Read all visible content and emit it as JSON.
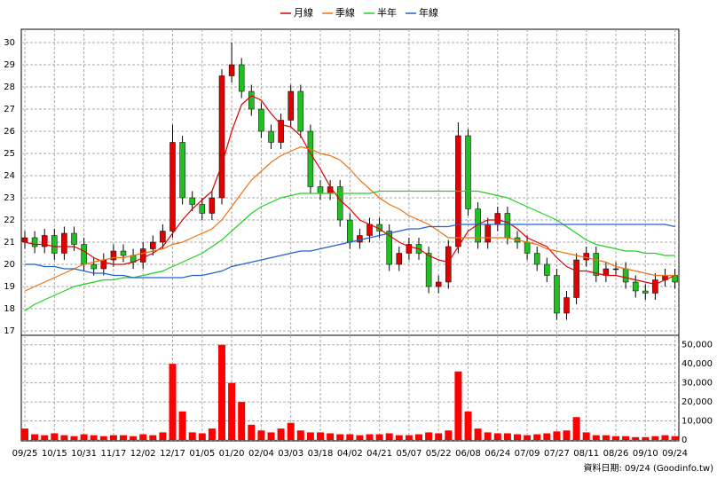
{
  "chart_data": {
    "type": "candlestick",
    "categories": [
      "09/25",
      null,
      null,
      "10/15",
      null,
      null,
      "10/31",
      null,
      null,
      "11/17",
      null,
      null,
      "12/02",
      null,
      null,
      "12/17",
      null,
      null,
      "01/05",
      null,
      null,
      "01/20",
      null,
      null,
      "02/04",
      null,
      null,
      "03/03",
      null,
      null,
      "03/18",
      null,
      null,
      "04/02",
      null,
      null,
      "04/21",
      null,
      null,
      "05/07",
      null,
      null,
      "05/22",
      null,
      null,
      "06/08",
      null,
      null,
      "06/24",
      null,
      null,
      "07/09",
      null,
      null,
      "07/27",
      null,
      null,
      "08/11",
      null,
      null,
      "08/26",
      null,
      null,
      "09/10",
      null,
      null,
      "09/24"
    ],
    "open": [
      21.0,
      21.2,
      20.8,
      21.3,
      20.5,
      21.4,
      20.9,
      20.0,
      19.8,
      20.2,
      20.6,
      20.4,
      20.1,
      20.7,
      21.0,
      21.5,
      25.5,
      23.0,
      22.7,
      22.3,
      23.0,
      28.5,
      29.0,
      27.8,
      27.0,
      26.0,
      25.5,
      26.5,
      27.8,
      26.0,
      23.5,
      23.2,
      23.5,
      22.0,
      21.0,
      21.3,
      21.8,
      21.5,
      20.0,
      20.5,
      20.9,
      20.5,
      19.0,
      19.2,
      20.8,
      25.8,
      22.5,
      21.0,
      21.8,
      22.3,
      21.2,
      21.0,
      20.5,
      20.0,
      19.5,
      17.8,
      18.5,
      20.2,
      20.5,
      19.5,
      19.8,
      19.8,
      19.2,
      18.8,
      18.7,
      19.3,
      19.5
    ],
    "high": [
      21.5,
      21.5,
      21.6,
      21.6,
      21.7,
      21.7,
      21.2,
      20.3,
      20.5,
      20.9,
      20.9,
      20.7,
      21.0,
      21.3,
      21.8,
      26.3,
      25.8,
      23.3,
      23.0,
      23.3,
      28.8,
      30.0,
      29.3,
      28.1,
      27.3,
      26.3,
      26.8,
      28.1,
      28.1,
      26.3,
      23.8,
      23.8,
      23.8,
      22.3,
      21.6,
      22.1,
      22.1,
      21.8,
      20.8,
      21.2,
      21.2,
      20.8,
      19.5,
      21.1,
      26.4,
      26.1,
      22.8,
      22.1,
      22.6,
      22.6,
      21.5,
      21.3,
      20.8,
      20.3,
      19.8,
      18.8,
      20.5,
      20.8,
      20.8,
      20.1,
      20.1,
      20.1,
      19.5,
      19.1,
      19.6,
      19.8,
      19.8
    ],
    "low": [
      20.7,
      20.5,
      20.5,
      20.2,
      20.2,
      20.6,
      19.7,
      19.5,
      19.5,
      19.9,
      20.1,
      19.8,
      19.8,
      20.4,
      20.7,
      21.2,
      22.7,
      22.4,
      22.0,
      22.0,
      22.7,
      28.2,
      27.5,
      26.7,
      25.7,
      25.2,
      25.2,
      26.2,
      25.7,
      23.2,
      22.9,
      22.9,
      21.7,
      20.7,
      20.7,
      21.0,
      21.2,
      19.7,
      19.7,
      20.2,
      20.2,
      18.7,
      18.7,
      18.9,
      20.5,
      22.2,
      20.7,
      20.7,
      21.5,
      20.9,
      20.7,
      20.2,
      19.7,
      19.2,
      17.5,
      17.5,
      18.2,
      19.9,
      19.2,
      19.2,
      19.5,
      18.9,
      18.5,
      18.4,
      18.4,
      19.0,
      18.9
    ],
    "close": [
      21.2,
      20.8,
      21.3,
      20.5,
      21.4,
      20.9,
      20.0,
      19.8,
      20.2,
      20.6,
      20.4,
      20.1,
      20.7,
      21.0,
      21.5,
      25.5,
      23.0,
      22.7,
      22.3,
      23.0,
      28.5,
      29.0,
      27.8,
      27.0,
      26.0,
      25.5,
      26.5,
      27.8,
      26.0,
      23.5,
      23.2,
      23.5,
      22.0,
      21.0,
      21.3,
      21.8,
      21.5,
      20.0,
      20.5,
      20.9,
      20.5,
      19.0,
      19.2,
      20.8,
      25.8,
      22.5,
      21.0,
      21.8,
      22.3,
      21.2,
      21.0,
      20.5,
      20.0,
      19.5,
      17.8,
      18.5,
      20.2,
      20.5,
      19.5,
      19.8,
      19.8,
      19.2,
      18.8,
      18.7,
      19.3,
      19.5,
      19.2
    ],
    "up_color": "#e00000",
    "down_color": "#20c020",
    "series": [
      {
        "name": "月線",
        "color": "#e00000",
        "values": [
          21.0,
          20.9,
          20.9,
          20.8,
          20.8,
          20.8,
          20.6,
          20.3,
          20.1,
          20.0,
          20.0,
          20.1,
          20.3,
          20.5,
          20.8,
          21.4,
          22.0,
          22.5,
          22.9,
          23.3,
          24.5,
          26.0,
          27.2,
          27.6,
          27.4,
          26.8,
          26.3,
          26.2,
          25.8,
          25.0,
          24.3,
          23.5,
          22.9,
          22.5,
          22.0,
          21.8,
          21.6,
          21.3,
          21.0,
          20.8,
          20.7,
          20.4,
          20.2,
          20.1,
          20.8,
          21.5,
          21.8,
          22.0,
          22.0,
          21.9,
          21.6,
          21.2,
          21.0,
          20.8,
          20.3,
          19.9,
          19.7,
          19.7,
          19.6,
          19.5,
          19.5,
          19.4,
          19.3,
          19.2,
          19.1,
          19.3,
          19.5
        ]
      },
      {
        "name": "季線",
        "color": "#f07010",
        "values": [
          18.8,
          19.0,
          19.2,
          19.4,
          19.6,
          19.8,
          20.0,
          20.1,
          20.2,
          20.3,
          20.3,
          20.4,
          20.5,
          20.6,
          20.7,
          20.9,
          21.0,
          21.2,
          21.4,
          21.6,
          22.0,
          22.6,
          23.2,
          23.8,
          24.2,
          24.6,
          24.9,
          25.1,
          25.3,
          25.2,
          25.0,
          24.9,
          24.7,
          24.3,
          23.8,
          23.4,
          23.0,
          22.7,
          22.5,
          22.2,
          22.0,
          21.8,
          21.5,
          21.2,
          21.2,
          21.2,
          21.2,
          21.2,
          21.2,
          21.2,
          21.1,
          21.0,
          20.9,
          20.7,
          20.6,
          20.5,
          20.4,
          20.3,
          20.2,
          20.1,
          19.9,
          19.8,
          19.7,
          19.6,
          19.5,
          19.5,
          19.5
        ]
      },
      {
        "name": "半年",
        "color": "#20d020",
        "values": [
          17.9,
          18.2,
          18.4,
          18.6,
          18.8,
          19.0,
          19.1,
          19.2,
          19.3,
          19.3,
          19.4,
          19.4,
          19.5,
          19.6,
          19.7,
          19.9,
          20.1,
          20.3,
          20.5,
          20.8,
          21.1,
          21.5,
          21.9,
          22.3,
          22.6,
          22.8,
          23.0,
          23.1,
          23.2,
          23.2,
          23.2,
          23.2,
          23.2,
          23.2,
          23.2,
          23.2,
          23.3,
          23.3,
          23.3,
          23.3,
          23.3,
          23.3,
          23.3,
          23.3,
          23.3,
          23.3,
          23.3,
          23.2,
          23.1,
          23.0,
          22.8,
          22.6,
          22.4,
          22.2,
          22.0,
          21.7,
          21.4,
          21.1,
          20.9,
          20.8,
          20.7,
          20.6,
          20.6,
          20.5,
          20.5,
          20.4,
          20.4
        ]
      },
      {
        "name": "年線",
        "color": "#2060d0",
        "values": [
          20.0,
          20.0,
          19.9,
          19.9,
          19.8,
          19.8,
          19.7,
          19.6,
          19.6,
          19.5,
          19.5,
          19.4,
          19.4,
          19.4,
          19.4,
          19.4,
          19.4,
          19.5,
          19.5,
          19.6,
          19.7,
          19.9,
          20.0,
          20.1,
          20.2,
          20.3,
          20.4,
          20.5,
          20.6,
          20.6,
          20.7,
          20.8,
          20.9,
          21.0,
          21.1,
          21.2,
          21.3,
          21.4,
          21.5,
          21.6,
          21.6,
          21.7,
          21.7,
          21.7,
          21.8,
          21.8,
          21.8,
          21.8,
          21.8,
          21.8,
          21.8,
          21.8,
          21.8,
          21.8,
          21.8,
          21.8,
          21.8,
          21.8,
          21.8,
          21.8,
          21.8,
          21.8,
          21.8,
          21.8,
          21.8,
          21.8,
          21.7
        ]
      }
    ],
    "ylim": [
      16.8,
      30.6
    ],
    "yticks": [
      17,
      18,
      19,
      20,
      21,
      22,
      23,
      24,
      25,
      26,
      27,
      28,
      29,
      30
    ],
    "grid": true,
    "volume": {
      "color": "#ff0000",
      "values": [
        6000,
        3000,
        2500,
        3500,
        2500,
        2000,
        3000,
        2500,
        2000,
        2500,
        2500,
        2000,
        3000,
        2500,
        4000,
        40000,
        15000,
        4000,
        3500,
        6000,
        50000,
        30000,
        20000,
        8000,
        5000,
        4000,
        6000,
        9000,
        5000,
        4000,
        4000,
        3500,
        3000,
        3000,
        2500,
        3000,
        3000,
        3500,
        2500,
        2500,
        3000,
        4000,
        3500,
        5000,
        36000,
        15000,
        6000,
        4000,
        3500,
        3500,
        3000,
        2500,
        3000,
        3500,
        4500,
        5000,
        12000,
        4000,
        2500,
        2500,
        2000,
        2000,
        1500,
        1500,
        2000,
        2500,
        2000
      ],
      "ylim": [
        0,
        55000
      ],
      "yticks": [
        0,
        {
          "value": 10000,
          "label": "10,000"
        },
        {
          "value": 20000,
          "label": "20,000"
        },
        {
          "value": 30000,
          "label": "30,000"
        },
        {
          "value": 40000,
          "label": "40,000"
        },
        {
          "value": 50000,
          "label": "50,000"
        }
      ]
    },
    "footer": "資料日期: 09/24 (Goodinfo.tw)"
  }
}
